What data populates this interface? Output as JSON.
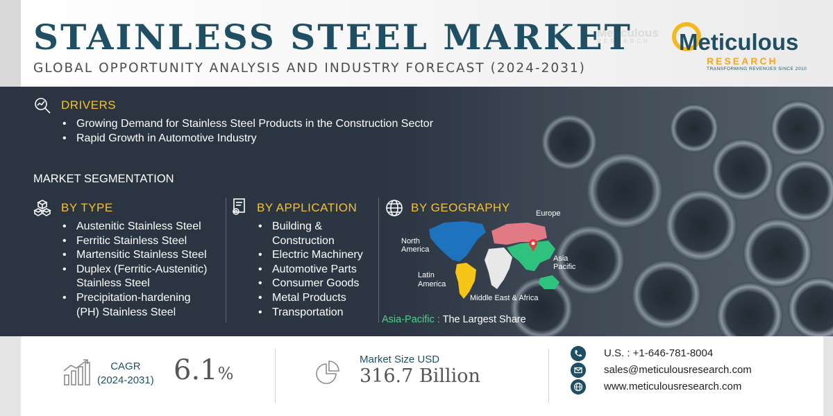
{
  "header": {
    "title": "STAINLESS STEEL MARKET",
    "subtitle": "GLOBAL OPPORTUNITY ANALYSIS AND INDUSTRY FORECAST (2024-2031)"
  },
  "logo": {
    "name": "Meticulous",
    "sub": "RESEARCH",
    "tagline": "TRANSFORMING REVENUES SINCE 2010"
  },
  "drivers": {
    "heading": "DRIVERS",
    "items": [
      "Growing Demand for Stainless Steel Products in the Construction Sector",
      "Rapid Growth in Automotive Industry"
    ]
  },
  "segmentation": {
    "heading": "MARKET SEGMENTATION",
    "by_type": {
      "heading": "BY TYPE",
      "items": [
        "Austenitic Stainless Steel",
        "Ferritic Stainless Steel",
        "Martensitic Stainless Steel",
        "Duplex (Ferritic-Austenitic)",
        "Stainless Steel",
        "Precipitation-hardening",
        "(PH) Stainless Steel"
      ]
    },
    "by_application": {
      "heading": "BY APPLICATION",
      "items": [
        "Building &",
        "Construction",
        "Electric Machinery",
        "Automotive Parts",
        "Consumer Goods",
        "Metal Products",
        "Transportation"
      ]
    },
    "by_geography": {
      "heading": "BY GEOGRAPHY",
      "regions": {
        "europe": "Europe",
        "north_america_1": "North",
        "north_america_2": "America",
        "asia_pacific_1": "Asia",
        "asia_pacific_2": "Pacific",
        "latin_america_1": "Latin",
        "latin_america_2": "America",
        "mea": "Middle East & Africa"
      },
      "largest_region": "Asia-Pacific :",
      "largest_text": "The Largest Share",
      "colors": {
        "north_america": "#1e73be",
        "latin_america": "#f5c518",
        "europe": "#e07b86",
        "asia_pacific": "#2ec27e",
        "mea": "#e8e8e8",
        "marker": "#e53935"
      }
    }
  },
  "stats": {
    "cagr_label": "CAGR",
    "cagr_period": "(2024-2031)",
    "cagr_value": "6.1",
    "cagr_unit": "%",
    "market_size_label": "Market Size USD",
    "market_size_value": "316.7 Billion"
  },
  "contact": {
    "phone": "U.S. : +1-646-781-8004",
    "email": "sales@meticulousresearch.com",
    "web": "www.meticulousresearch.com"
  },
  "icons": {
    "drivers": "magnifier-chart-icon",
    "type": "cubes-icon",
    "application": "document-gear-icon",
    "geography": "globe-icon",
    "cagr": "bar-chart-growth-icon",
    "market_size": "pie-chart-icon",
    "phone": "phone-icon",
    "email": "mail-icon",
    "web": "globe-icon"
  }
}
